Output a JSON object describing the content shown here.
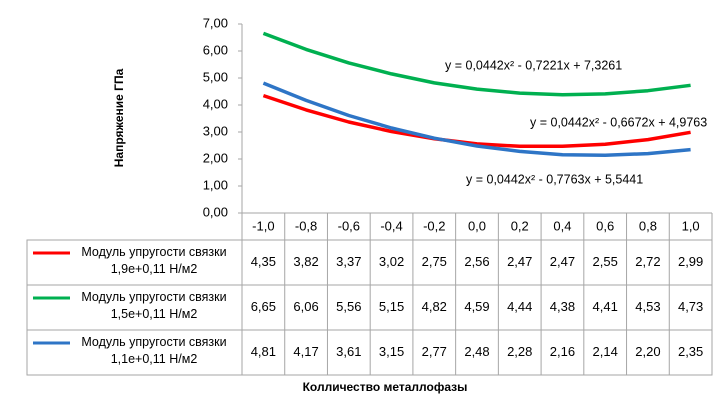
{
  "chart_data": {
    "type": "line",
    "y_axis_label": "Напряжение ГПа",
    "x_axis_label": "Колличество  металлофазы",
    "categories": [
      "-1,0",
      "-0,8",
      "-0,6",
      "-0,4",
      "-0,2",
      "0,0",
      "0,2",
      "0,4",
      "0,6",
      "0,8",
      "1,0"
    ],
    "series": [
      {
        "name": "Модуль упругости связки 1,9е+0,11 Н/м2",
        "color": "#ff0000",
        "values": [
          4.35,
          3.82,
          3.37,
          3.02,
          2.75,
          2.56,
          2.47,
          2.47,
          2.55,
          2.72,
          2.99
        ],
        "value_labels": [
          "4,35",
          "3,82",
          "3,37",
          "3,02",
          "2,75",
          "2,56",
          "2,47",
          "2,47",
          "2,55",
          "2,72",
          "2,99"
        ]
      },
      {
        "name": "Модуль упругости связки 1,5е+0,11 Н/м2",
        "color": "#00b050",
        "values": [
          6.65,
          6.06,
          5.56,
          5.15,
          4.82,
          4.59,
          4.44,
          4.38,
          4.41,
          4.53,
          4.73
        ],
        "value_labels": [
          "6,65",
          "6,06",
          "5,56",
          "5,15",
          "4,82",
          "4,59",
          "4,44",
          "4,38",
          "4,41",
          "4,53",
          "4,73"
        ]
      },
      {
        "name": "Модуль упругости связки 1,1е+0,11 Н/м2",
        "color": "#2e75c6",
        "values": [
          4.81,
          4.17,
          3.61,
          3.15,
          2.77,
          2.48,
          2.28,
          2.16,
          2.14,
          2.2,
          2.35
        ],
        "value_labels": [
          "4,81",
          "4,17",
          "3,61",
          "3,15",
          "2,77",
          "2,48",
          "2,28",
          "2,16",
          "2,14",
          "2,20",
          "2,35"
        ]
      }
    ],
    "annotations": [
      "y = 0,0442x² - 0,7221x + 7,3261",
      "y = 0,0442x² - 0,6672x + 4,9763",
      "y = 0,0442x² - 0,7763x + 5,5441"
    ],
    "ylim": [
      0,
      7
    ],
    "yticks": [
      {
        "value": 0,
        "label": "0,00"
      },
      {
        "value": 1,
        "label": "1,00"
      },
      {
        "value": 2,
        "label": "2,00"
      },
      {
        "value": 3,
        "label": "3,00"
      },
      {
        "value": 4,
        "label": "4,00"
      },
      {
        "value": 5,
        "label": "5,00"
      },
      {
        "value": 6,
        "label": "6,00"
      },
      {
        "value": 7,
        "label": "7,00"
      }
    ],
    "grid": false
  }
}
